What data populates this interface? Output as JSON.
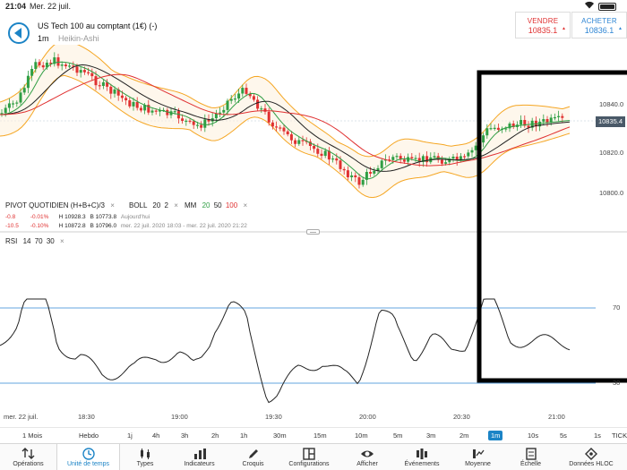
{
  "status": {
    "time": "21:04",
    "date": "Mer. 22 juil."
  },
  "instrument": {
    "title": "US Tech 100 au comptant (1€) (-)",
    "timeframe": "1m",
    "chart_type": "Heikin-Ashi"
  },
  "quote": {
    "sell_label": "VENDRE",
    "sell_price": "10835.1",
    "buy_label": "ACHETER",
    "buy_price": "10836.1"
  },
  "colors": {
    "accent": "#1c84c6",
    "down": "#e03131",
    "up": "#2f9e44",
    "band": "#f5a623"
  },
  "indicators": {
    "pivot": "PIVOT QUOTIDIEN (H+B+C)/3",
    "boll": "BOLL",
    "boll_n": "20",
    "boll_k": "2",
    "mm": "MM",
    "mm_a": "20",
    "mm_b": "50",
    "mm_c": "100",
    "close_icon": "×",
    "info1_a": "-0.8",
    "info1_b": "-0.01%",
    "info1_c": "H 10928.3",
    "info1_d": "B 10773.8",
    "info1_e": "Aujourd'hui",
    "info2_a": "-10.5",
    "info2_b": "-0.10%",
    "info2_c": "H 10872.8",
    "info2_d": "B 10796.0",
    "info2_e": "mer. 22 juil. 2020 18:03 - mer. 22 juil. 2020 21:22",
    "rsi": "RSI",
    "rsi_n": "14",
    "rsi_hi": "70",
    "rsi_lo": "30"
  },
  "axis": {
    "price": [
      "10840.0",
      "10820.0",
      "10800.0"
    ],
    "last_price": "10835.4",
    "rsi_70": "70",
    "rsi_30": "30",
    "date": "mer. 22 juil.",
    "times": [
      "18:30",
      "19:00",
      "19:30",
      "20:00",
      "20:30",
      "21:00"
    ]
  },
  "timeframes": [
    "1 Mois",
    "Hebdo",
    "1j",
    "4h",
    "3h",
    "2h",
    "1h",
    "30m",
    "15m",
    "10m",
    "5m",
    "3m",
    "2m",
    "1m",
    "10s",
    "5s",
    "1s",
    "TICK"
  ],
  "timeframe_active": "1m",
  "toolbar": [
    {
      "label": "Opérations",
      "icon": "transfer-icon"
    },
    {
      "label": "Unité de temps",
      "icon": "clock-icon"
    },
    {
      "label": "Types",
      "icon": "candles-icon"
    },
    {
      "label": "Indicateurs",
      "icon": "indicators-icon"
    },
    {
      "label": "Croquis",
      "icon": "pencil-icon"
    },
    {
      "label": "Configurations",
      "icon": "layout-icon"
    },
    {
      "label": "Afficher",
      "icon": "eye-icon"
    },
    {
      "label": "Événements",
      "icon": "events-icon"
    },
    {
      "label": "Moyenne",
      "icon": "average-icon"
    },
    {
      "label": "Échelle",
      "icon": "scale-icon"
    },
    {
      "label": "Données HLOC",
      "icon": "data-icon"
    }
  ],
  "toolbar_active": "Unité de temps"
}
